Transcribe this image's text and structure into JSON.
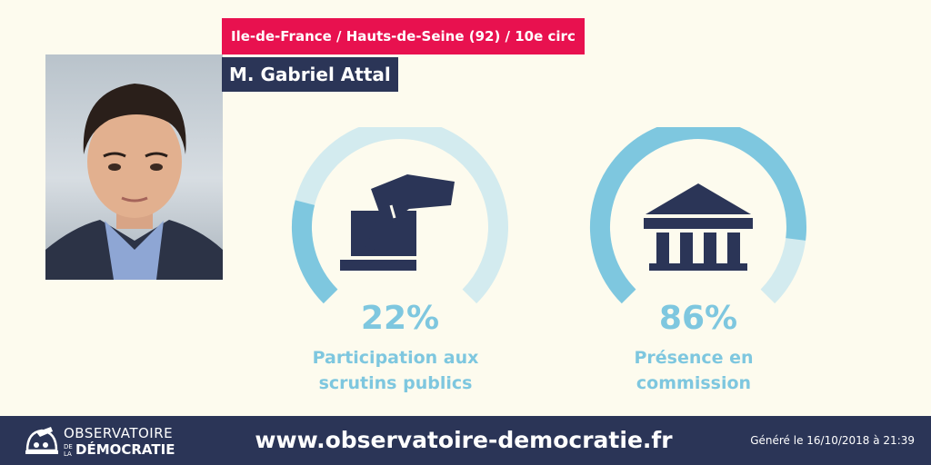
{
  "header": {
    "region": "Ile-de-France / Hauts-de-Seine (92) / 10e circ",
    "deputy_name": "M. Gabriel Attal"
  },
  "stats": [
    {
      "percent_label": "22%",
      "percent_value": 22,
      "label_line1": "Participation aux",
      "label_line2": "scrutins publics",
      "icon": "ballot-box-icon"
    },
    {
      "percent_label": "86%",
      "percent_value": 86,
      "label_line1": "Présence en",
      "label_line2": "commission",
      "icon": "parliament-building-icon"
    }
  ],
  "footer": {
    "logo_top": "OBSERVATOIRE",
    "logo_small_1": "DE",
    "logo_small_2": "LA",
    "logo_bottom": "DÉMOCRATIE",
    "url": "www.observatoire-democratie.fr",
    "generated": "Généré le 16/10/2018 à 21:39"
  },
  "colors": {
    "background": "#fdfbee",
    "region_tag": "#e8114f",
    "navy": "#2b3557",
    "gauge_fill": "#7ec7df",
    "gauge_track": "#d3ebef"
  }
}
